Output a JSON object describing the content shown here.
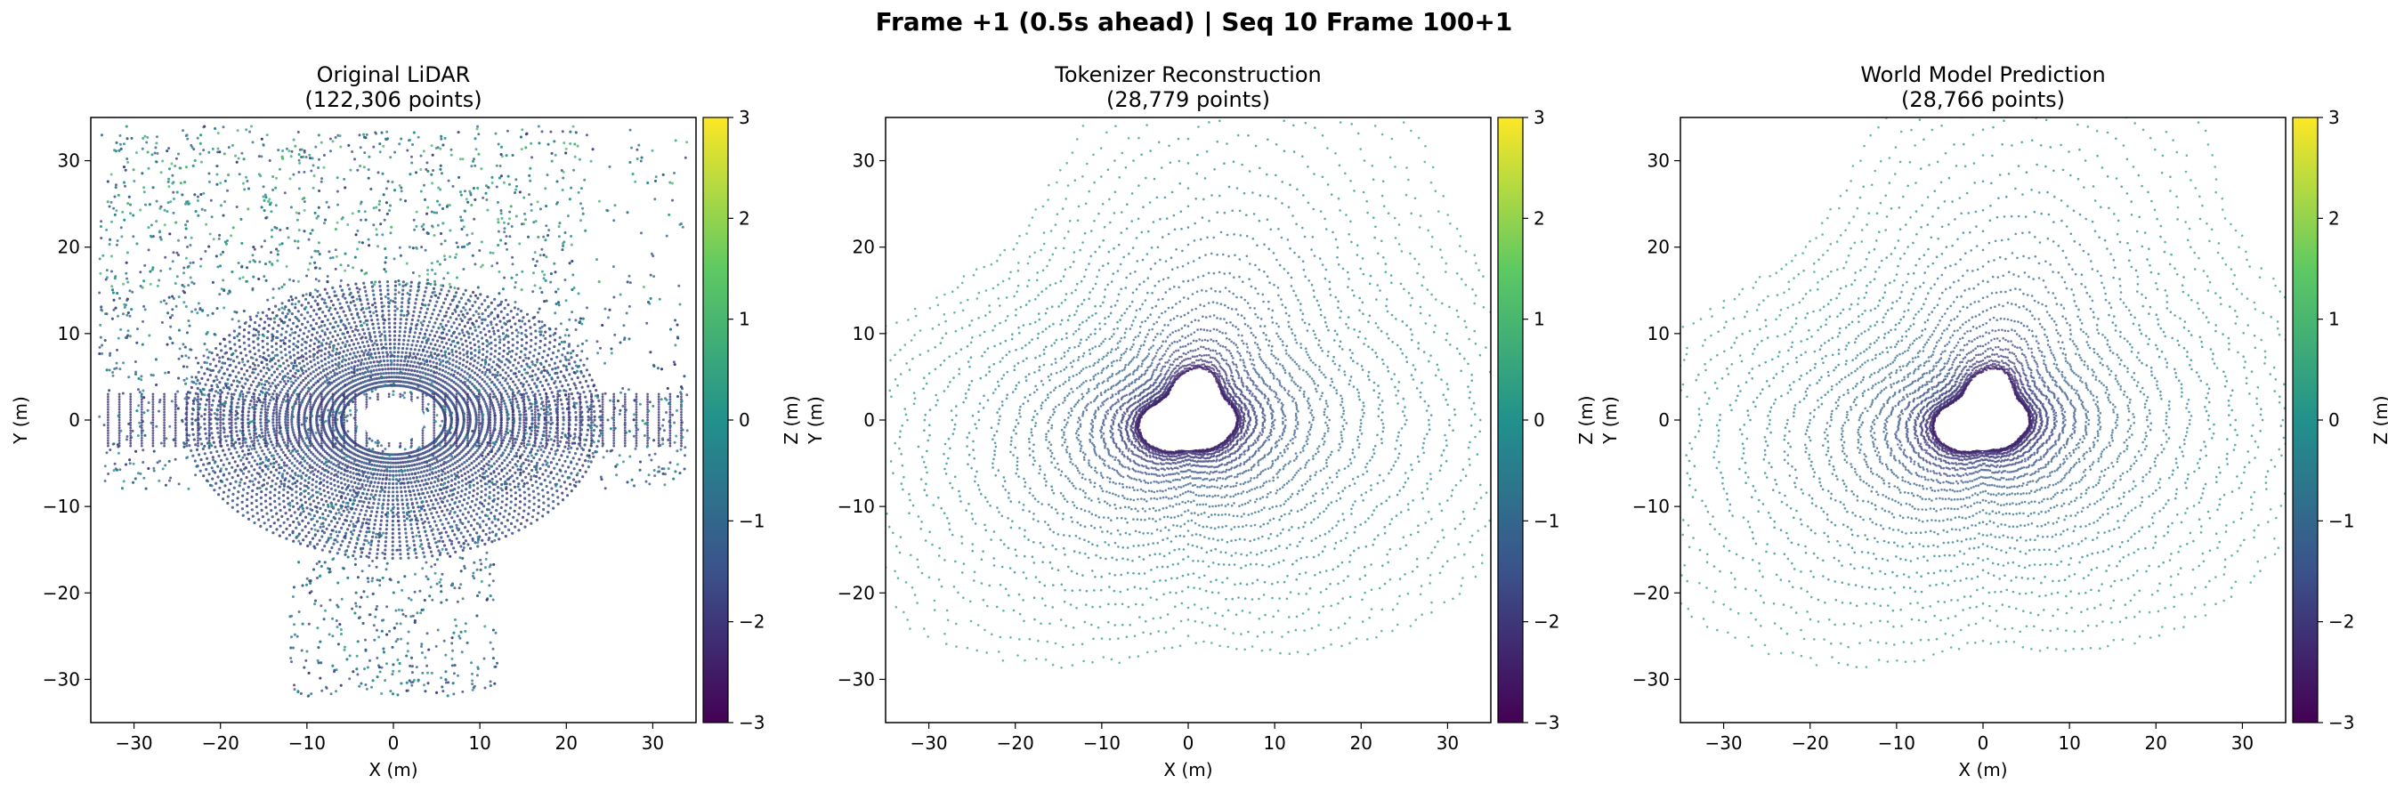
{
  "figure": {
    "suptitle": "Frame +1 (0.5s ahead) | Seq 10 Frame 100+1"
  },
  "colorbar": {
    "label": "Z (m)",
    "range": [
      -3,
      3
    ],
    "ticks": [
      "3",
      "2",
      "1",
      "0",
      "−1",
      "−2",
      "−3"
    ],
    "colormap": [
      "#440154",
      "#3b528b",
      "#21918c",
      "#5ec962",
      "#fde725"
    ]
  },
  "chart_data": [
    {
      "type": "scatter",
      "title": "Original LiDAR",
      "subtitle": "(122,306 points)",
      "xlabel": "X (m)",
      "ylabel": "Y (m)",
      "xlim": [
        -35,
        35
      ],
      "ylim": [
        -35,
        35
      ],
      "xticks": [
        "−30",
        "−20",
        "−10",
        "0",
        "10",
        "20",
        "30"
      ],
      "yticks": [
        "30",
        "20",
        "10",
        "0",
        "−10",
        "−20",
        "−30"
      ],
      "grid": false
    },
    {
      "type": "scatter",
      "title": "Tokenizer Reconstruction",
      "subtitle": "(28,779 points)",
      "xlabel": "X (m)",
      "ylabel": "Y (m)",
      "xlim": [
        -35,
        35
      ],
      "ylim": [
        -35,
        35
      ],
      "xticks": [
        "−30",
        "−20",
        "−10",
        "0",
        "10",
        "20",
        "30"
      ],
      "yticks": [
        "30",
        "20",
        "10",
        "0",
        "−10",
        "−20",
        "−30"
      ],
      "grid": false
    },
    {
      "type": "scatter",
      "title": "World Model Prediction",
      "subtitle": "(28,766 points)",
      "xlabel": "X (m)",
      "ylabel": "Y (m)",
      "xlim": [
        -35,
        35
      ],
      "ylim": [
        -35,
        35
      ],
      "xticks": [
        "−30",
        "−20",
        "−10",
        "0",
        "10",
        "20",
        "30"
      ],
      "yticks": [
        "30",
        "20",
        "10",
        "0",
        "−10",
        "−20",
        "−30"
      ],
      "grid": false
    }
  ]
}
